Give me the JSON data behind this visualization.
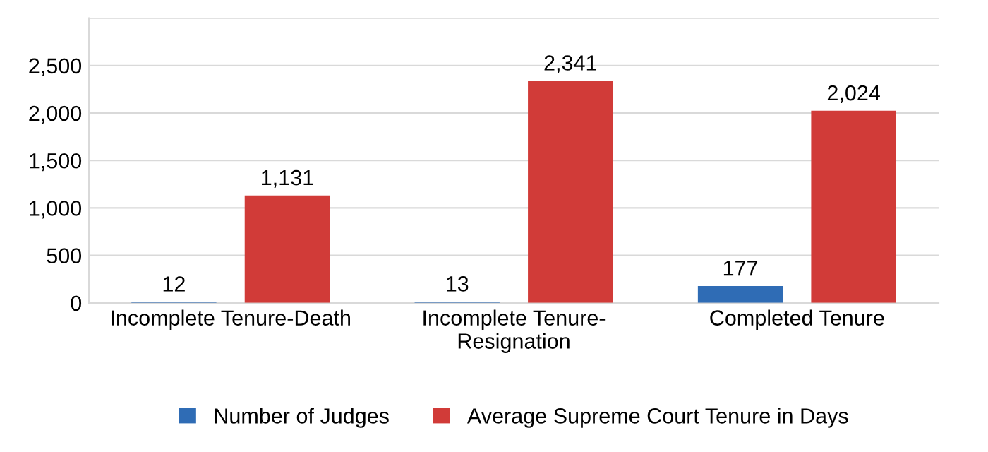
{
  "chart_data": {
    "type": "bar",
    "categories": [
      "Incomplete Tenure-Death",
      "Incomplete Tenure-\nResignation",
      "Completed Tenure"
    ],
    "series": [
      {
        "name": "Number of Judges",
        "color": "#2f6cb5",
        "values": [
          12,
          13,
          177
        ],
        "value_labels": [
          "12",
          "13",
          "177"
        ]
      },
      {
        "name": "Average Supreme Court Tenure in Days",
        "color": "#d13b38",
        "values": [
          1131,
          2341,
          2024
        ],
        "value_labels": [
          "1,131",
          "2,341",
          "2,024"
        ]
      }
    ],
    "ylim": [
      0,
      3000
    ],
    "yticks": [
      0,
      500,
      {
        "value": 1000,
        "label": "1,000"
      },
      {
        "value": 1500,
        "label": "1,500"
      },
      {
        "value": 2000,
        "label": "2,000"
      },
      {
        "value": 2500,
        "label": "2,500"
      },
      {
        "value": 3000,
        "label": null
      }
    ],
    "grid": "y",
    "legend": "bottom"
  }
}
